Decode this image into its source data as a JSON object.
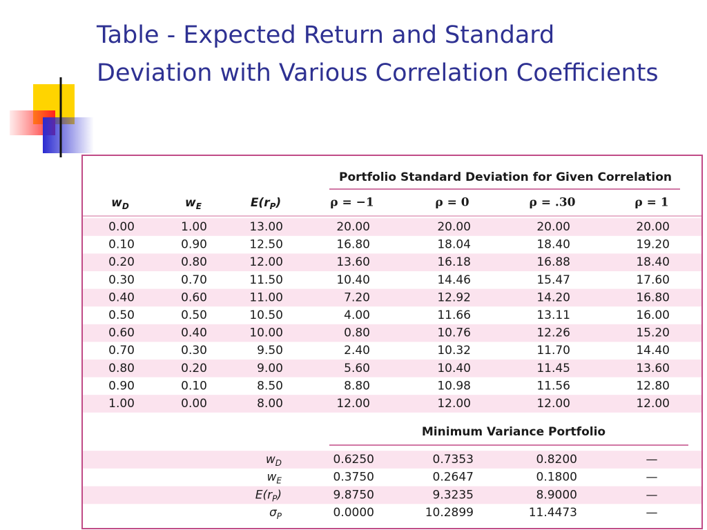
{
  "title": "Table - Expected Return and Standard Deviation with Various Correlation Coefficients",
  "table": {
    "group_header": "Portfolio Standard Deviation for Given Correlation",
    "columns": [
      {
        "base": "w",
        "sub": "D"
      },
      {
        "base": "w",
        "sub": "E"
      },
      {
        "base": "E(r",
        "sub": "P",
        "tail": ")"
      },
      "ρ = −1",
      "ρ = 0",
      "ρ = .30",
      "ρ = 1"
    ],
    "rows": [
      [
        "0.00",
        "1.00",
        "13.00",
        "20.00",
        "20.00",
        "20.00",
        "20.00"
      ],
      [
        "0.10",
        "0.90",
        "12.50",
        "16.80",
        "18.04",
        "18.40",
        "19.20"
      ],
      [
        "0.20",
        "0.80",
        "12.00",
        "13.60",
        "16.18",
        "16.88",
        "18.40"
      ],
      [
        "0.30",
        "0.70",
        "11.50",
        "10.40",
        "14.46",
        "15.47",
        "17.60"
      ],
      [
        "0.40",
        "0.60",
        "11.00",
        "7.20",
        "12.92",
        "14.20",
        "16.80"
      ],
      [
        "0.50",
        "0.50",
        "10.50",
        "4.00",
        "11.66",
        "13.11",
        "16.00"
      ],
      [
        "0.60",
        "0.40",
        "10.00",
        "0.80",
        "10.76",
        "12.26",
        "15.20"
      ],
      [
        "0.70",
        "0.30",
        "9.50",
        "2.40",
        "10.32",
        "11.70",
        "14.40"
      ],
      [
        "0.80",
        "0.20",
        "9.00",
        "5.60",
        "10.40",
        "11.45",
        "13.60"
      ],
      [
        "0.90",
        "0.10",
        "8.50",
        "8.80",
        "10.98",
        "11.56",
        "12.80"
      ],
      [
        "1.00",
        "0.00",
        "8.00",
        "12.00",
        "12.00",
        "12.00",
        "12.00"
      ]
    ],
    "min_variance": {
      "title": "Minimum Variance Portfolio",
      "rows": [
        {
          "label": {
            "base": "w",
            "sub": "D"
          },
          "values": [
            "0.6250",
            "0.7353",
            "0.8200",
            "—"
          ]
        },
        {
          "label": {
            "base": "w",
            "sub": "E"
          },
          "values": [
            "0.3750",
            "0.2647",
            "0.1800",
            "—"
          ]
        },
        {
          "label": {
            "base": "E(r",
            "sub": "P",
            "tail": ")"
          },
          "values": [
            "9.8750",
            "9.3235",
            "8.9000",
            "—"
          ]
        },
        {
          "label": {
            "base": "σ",
            "sub": "P"
          },
          "values": [
            "0.0000",
            "10.2899",
            "11.4473",
            "—"
          ]
        }
      ]
    }
  }
}
